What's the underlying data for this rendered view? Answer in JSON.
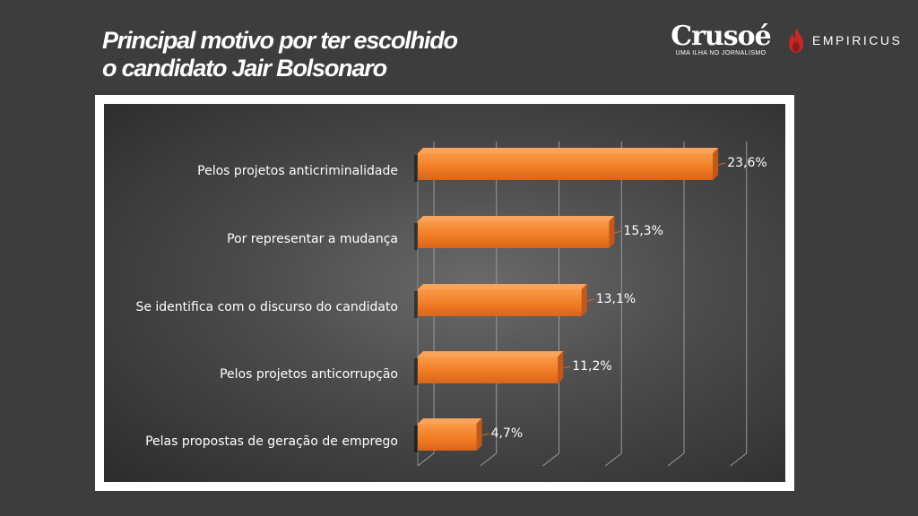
{
  "header": {
    "title_line1": "Principal motivo por ter escolhido",
    "title_line2": "o candidato Jair Bolsonaro"
  },
  "logos": {
    "crusoe_name": "Crusoé",
    "crusoe_tagline": "UMA ILHA NO JORNALISMO",
    "empiricus_name": "EMPIRICUS",
    "empiricus_icon": "flame-icon",
    "empiricus_color": "#c62828"
  },
  "chart_data": {
    "type": "bar",
    "orientation": "horizontal",
    "categories": [
      "Pelos projetos anticriminalidade",
      "Por representar a mudança",
      "Se identifica com o discurso do candidato",
      "Pelos projetos anticorrupção",
      "Pelas propostas de geração de emprego"
    ],
    "values": [
      23.6,
      15.3,
      13.1,
      11.2,
      4.7
    ],
    "value_labels": [
      "23,6%",
      "15,3%",
      "13,1%",
      "11,2%",
      "4,7%"
    ],
    "xlim": [
      0,
      25
    ],
    "bar_color": "#f07c24",
    "grid": true,
    "legend": "none",
    "style": "3d"
  }
}
